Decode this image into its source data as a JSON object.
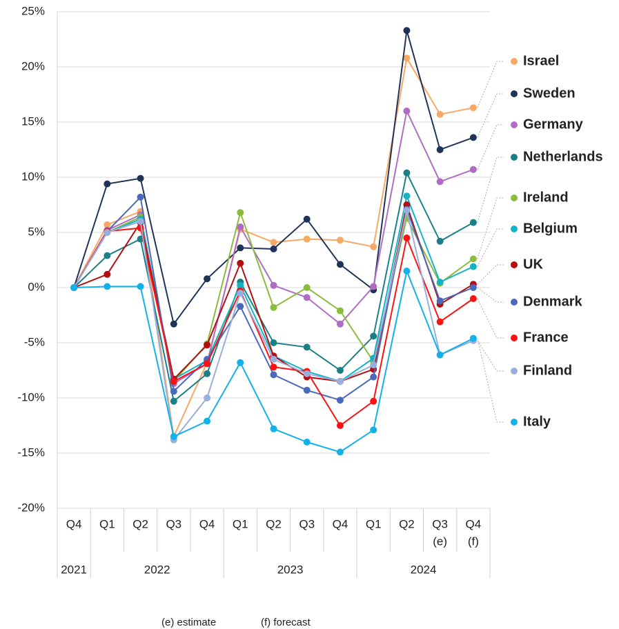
{
  "chart_data": {
    "type": "line",
    "categories": [
      "Q4",
      "Q1",
      "Q2",
      "Q3",
      "Q4",
      "Q1",
      "Q2",
      "Q3",
      "Q4",
      "Q1",
      "Q2",
      "Q3",
      "Q4"
    ],
    "category_notes": [
      null,
      null,
      null,
      null,
      null,
      null,
      null,
      null,
      null,
      null,
      null,
      "(e)",
      "(f)"
    ],
    "category_years": [
      "2021",
      "2022",
      "2022",
      "2022",
      "2022",
      "2023",
      "2023",
      "2023",
      "2023",
      "2024",
      "2024",
      "2024",
      "2024"
    ],
    "ylim": [
      -20,
      25
    ],
    "yticks": [
      {
        "value": -20,
        "label": "-20%"
      },
      {
        "value": -15,
        "label": "-15%"
      },
      {
        "value": -10,
        "label": "-10%"
      },
      {
        "value": -5,
        "label": "-5%"
      },
      {
        "value": 0,
        "label": "0%"
      },
      {
        "value": 5,
        "label": "5%"
      },
      {
        "value": 10,
        "label": "10%"
      },
      {
        "value": 15,
        "label": "15%"
      },
      {
        "value": 20,
        "label": "20%"
      },
      {
        "value": 25,
        "label": "25%"
      }
    ],
    "grid": true,
    "legend": "right",
    "footnotes": [
      "(e) estimate",
      "(f) forecast"
    ],
    "series": [
      {
        "name": "Israel",
        "color": "#f9a863",
        "values": [
          0,
          5.7,
          6.9,
          -13.5,
          -6.8,
          5.3,
          4.1,
          4.4,
          4.3,
          3.7,
          20.8,
          15.7,
          16.3
        ]
      },
      {
        "name": "Sweden",
        "color": "#1f3358",
        "values": [
          0,
          9.4,
          9.9,
          -3.3,
          0.8,
          3.6,
          3.5,
          6.2,
          2.1,
          -0.2,
          23.3,
          12.5,
          13.6
        ]
      },
      {
        "name": "Germany",
        "color": "#b06cc4",
        "values": [
          0,
          5.2,
          6.6,
          -8.7,
          -6.9,
          5.5,
          0.2,
          -0.9,
          -3.3,
          0.1,
          16.0,
          9.6,
          10.7
        ]
      },
      {
        "name": "Netherlands",
        "color": "#1a7f86",
        "values": [
          0,
          2.9,
          4.4,
          -10.3,
          -7.8,
          0.5,
          -5.0,
          -5.4,
          -7.5,
          -4.4,
          10.4,
          4.2,
          5.9
        ]
      },
      {
        "name": "Ireland",
        "color": "#8dbb3d",
        "values": [
          0,
          5.0,
          6.4,
          -8.5,
          -5.1,
          6.8,
          -1.8,
          0,
          -2.1,
          -6.7,
          6.3,
          0.4,
          2.6
        ]
      },
      {
        "name": "Belgium",
        "color": "#14b3c4",
        "values": [
          0,
          5.0,
          6.2,
          -8.3,
          -6.6,
          0.2,
          -6.2,
          -7.6,
          -8.5,
          -6.4,
          8.3,
          0.5,
          1.9
        ]
      },
      {
        "name": "UK",
        "color": "#b30d10",
        "values": [
          0,
          1.2,
          5.9,
          -8.3,
          -5.2,
          2.2,
          -6.2,
          -8.1,
          -8.5,
          -7.4,
          7.5,
          -1.5,
          0.3
        ]
      },
      {
        "name": "Denmark",
        "color": "#4a69bb",
        "values": [
          0,
          5.1,
          8.2,
          -9.4,
          -6.5,
          -1.7,
          -7.9,
          -9.3,
          -10.2,
          -8.1,
          7.1,
          -1.2,
          0
        ]
      },
      {
        "name": "France",
        "color": "#fb1313",
        "values": [
          0,
          5.1,
          5.4,
          -8.5,
          -6.9,
          -0.3,
          -7.2,
          -7.6,
          -12.5,
          -10.3,
          4.5,
          -3.1,
          -1.0
        ]
      },
      {
        "name": "Finland",
        "color": "#9aaedb",
        "values": [
          0,
          5.0,
          6.0,
          -13.8,
          -10.0,
          -0.5,
          -6.5,
          -7.8,
          -8.5,
          -7.0,
          7.0,
          -6.1,
          -4.8
        ]
      },
      {
        "name": "Italy",
        "color": "#12b1ea",
        "values": [
          0,
          0.1,
          0.1,
          -13.5,
          -12.1,
          -6.8,
          -12.8,
          -14.0,
          -14.9,
          -12.9,
          1.5,
          -6.1,
          -4.6
        ]
      }
    ]
  }
}
